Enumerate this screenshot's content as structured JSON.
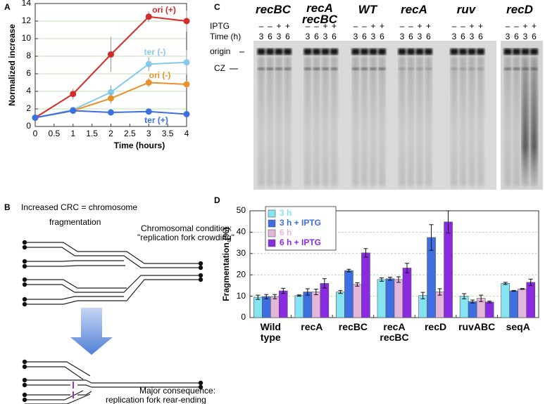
{
  "panel_labels": [
    "A",
    "B",
    "C",
    "D"
  ],
  "chart_data": [
    {
      "type": "line",
      "xlabel": "Time (hours)",
      "ylabel": "Normalized increase",
      "x": [
        0,
        1,
        2,
        3,
        4
      ],
      "xlim": [
        0,
        4
      ],
      "xticks": [
        0,
        0.5,
        1,
        1.5,
        2,
        2.5,
        3,
        3.5,
        4
      ],
      "ylim": [
        0,
        14
      ],
      "yticks": [
        0,
        2,
        4,
        6,
        8,
        10,
        12,
        14
      ],
      "grid": true,
      "series": [
        {
          "name": "ori (+)",
          "color": "#d42a2a",
          "values": [
            1,
            3.7,
            8.2,
            12.5,
            12
          ],
          "errors": [
            0,
            0.6,
            2,
            0.6,
            1.2
          ]
        },
        {
          "name": "ter (-)",
          "color": "#82c9ea",
          "values": [
            1,
            1.9,
            3.9,
            7.1,
            7.3
          ],
          "errors": [
            0,
            0.2,
            0.8,
            0.8,
            1.4
          ]
        },
        {
          "name": "ori (-)",
          "color": "#e8902a",
          "values": [
            1,
            1.8,
            3.2,
            5,
            4.8
          ],
          "errors": [
            0,
            0.2,
            0.6,
            0.5,
            0.4
          ]
        },
        {
          "name": "ter (+)",
          "color": "#3d6fe0",
          "values": [
            1,
            1.8,
            1.6,
            1.7,
            1.4
          ],
          "errors": [
            0,
            0.2,
            0.3,
            0.3,
            0.2
          ]
        }
      ]
    },
    {
      "type": "bar",
      "ylabel": "Fragmentation (%)",
      "categories": [
        "Wild type",
        "recA",
        "recBC",
        "recA recBC",
        "recD",
        "ruvABC",
        "seqA"
      ],
      "ylim": [
        0,
        50
      ],
      "yticks": [
        0,
        10,
        20,
        30,
        40,
        50
      ],
      "grid": true,
      "legend": "upper left",
      "series": [
        {
          "name": "3 h",
          "color": "#86e4f2",
          "values": [
            9.5,
            10.3,
            12,
            17.8,
            10.3,
            10,
            16
          ],
          "errors": [
            1,
            0.3,
            0.7,
            0.8,
            1.5,
            1.2,
            0.5
          ]
        },
        {
          "name": "3 h + IPTG",
          "color": "#3d6fe0",
          "values": [
            9.8,
            12,
            22,
            18.2,
            37.5,
            7.5,
            12.5
          ],
          "errors": [
            1,
            1.5,
            0.6,
            0.7,
            6,
            0.7,
            0.2
          ]
        },
        {
          "name": "6 h",
          "color": "#e4b6dc",
          "values": [
            9.8,
            12,
            15.5,
            17.8,
            12,
            9,
            13.4
          ],
          "errors": [
            1,
            1.3,
            0.8,
            1.3,
            1.5,
            1.5,
            0.2
          ]
        },
        {
          "name": "6 h + IPTG",
          "color": "#8a2be2",
          "values": [
            12.5,
            16,
            30.3,
            23.2,
            44.8,
            7.3,
            16.5
          ],
          "errors": [
            1.2,
            2.2,
            2,
            2.2,
            5.2,
            0.4,
            1.5
          ]
        }
      ]
    }
  ],
  "gel": {
    "groups": [
      "recBC",
      "recA recBC",
      "WT",
      "recA",
      "ruv",
      "recD"
    ],
    "iptg_label": "IPTG",
    "time_label": "Time (h)",
    "iptg": [
      "–",
      "–",
      "+",
      "+"
    ],
    "times": [
      "3",
      "6",
      "3",
      "6"
    ],
    "bands": [
      "origin",
      "CZ"
    ]
  },
  "diagram": {
    "title_lines": [
      "Increased CRC = chromosome",
      "fragmentation"
    ],
    "condition_lines": [
      "Chromosomal condition:",
      "\"replication fork crowding\""
    ],
    "consequence_lines": [
      "Major consequence:",
      "replication fork rear-ending"
    ]
  }
}
